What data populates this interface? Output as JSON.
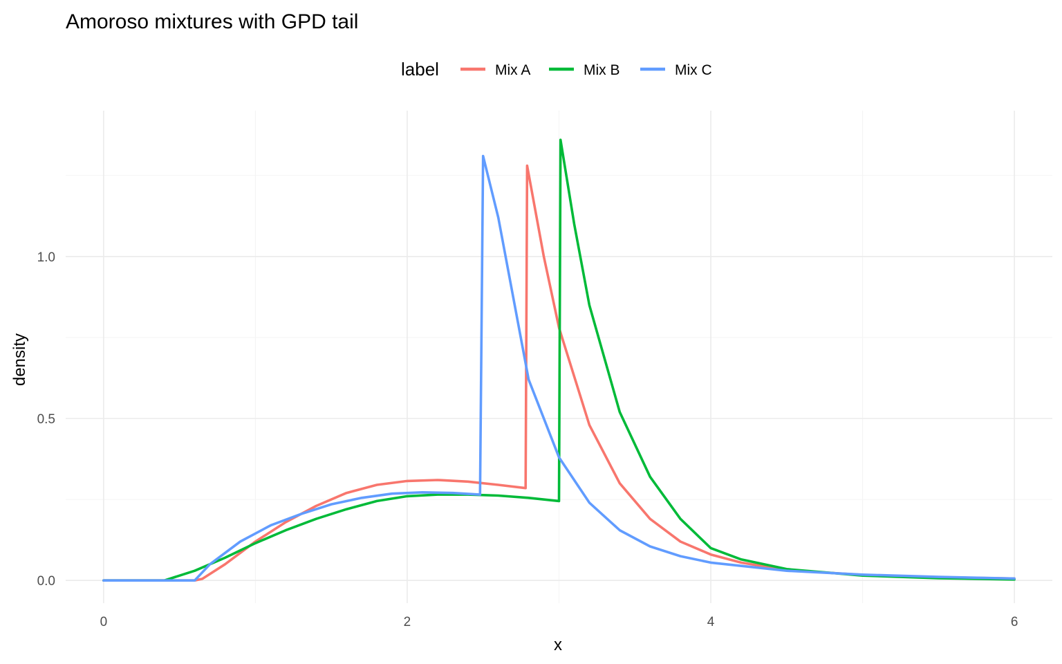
{
  "chart_data": {
    "type": "line",
    "title": "Amoroso mixtures with GPD tail",
    "xlabel": "x",
    "ylabel": "density",
    "xlim": [
      -0.25,
      6.25
    ],
    "ylim": [
      -0.07,
      1.45
    ],
    "x_ticks": [
      0,
      2,
      4,
      6
    ],
    "x_tick_labels": [
      "0",
      "2",
      "4",
      "6"
    ],
    "x_minor": [
      1,
      3,
      5
    ],
    "y_ticks": [
      0.0,
      0.5,
      1.0
    ],
    "y_tick_labels": [
      "0.0",
      "0.5",
      "1.0"
    ],
    "y_minor": [
      0.25,
      0.75,
      1.25
    ],
    "grid": true,
    "legend": {
      "title": "label",
      "position": "top"
    },
    "series": [
      {
        "name": "Mix A",
        "color": "#F8766D",
        "points": [
          [
            0,
            0
          ],
          [
            0.6,
            0
          ],
          [
            0.65,
            0.005
          ],
          [
            0.8,
            0.05
          ],
          [
            1.0,
            0.12
          ],
          [
            1.2,
            0.18
          ],
          [
            1.4,
            0.23
          ],
          [
            1.6,
            0.27
          ],
          [
            1.8,
            0.295
          ],
          [
            2.0,
            0.307
          ],
          [
            2.2,
            0.31
          ],
          [
            2.4,
            0.305
          ],
          [
            2.6,
            0.295
          ],
          [
            2.78,
            0.285
          ],
          [
            2.79,
            1.28
          ],
          [
            2.9,
            1.0
          ],
          [
            3.0,
            0.78
          ],
          [
            3.2,
            0.48
          ],
          [
            3.4,
            0.3
          ],
          [
            3.6,
            0.19
          ],
          [
            3.8,
            0.12
          ],
          [
            4.0,
            0.08
          ],
          [
            4.2,
            0.055
          ],
          [
            4.5,
            0.032
          ],
          [
            5.0,
            0.017
          ],
          [
            5.5,
            0.01
          ],
          [
            6.0,
            0.006
          ]
        ]
      },
      {
        "name": "Mix B",
        "color": "#00BA38",
        "points": [
          [
            0,
            0
          ],
          [
            0.4,
            0
          ],
          [
            0.6,
            0.03
          ],
          [
            0.8,
            0.07
          ],
          [
            1.0,
            0.115
          ],
          [
            1.2,
            0.155
          ],
          [
            1.4,
            0.19
          ],
          [
            1.6,
            0.22
          ],
          [
            1.8,
            0.245
          ],
          [
            2.0,
            0.26
          ],
          [
            2.2,
            0.265
          ],
          [
            2.4,
            0.265
          ],
          [
            2.6,
            0.262
          ],
          [
            2.8,
            0.255
          ],
          [
            3.0,
            0.245
          ],
          [
            3.01,
            1.36
          ],
          [
            3.1,
            1.1
          ],
          [
            3.2,
            0.85
          ],
          [
            3.4,
            0.52
          ],
          [
            3.6,
            0.32
          ],
          [
            3.8,
            0.19
          ],
          [
            4.0,
            0.1
          ],
          [
            4.2,
            0.065
          ],
          [
            4.5,
            0.035
          ],
          [
            5.0,
            0.015
          ],
          [
            5.5,
            0.007
          ],
          [
            6.0,
            0.003
          ]
        ]
      },
      {
        "name": "Mix C",
        "color": "#619CFF",
        "points": [
          [
            0,
            0
          ],
          [
            0.6,
            0
          ],
          [
            0.7,
            0.05
          ],
          [
            0.9,
            0.12
          ],
          [
            1.1,
            0.17
          ],
          [
            1.3,
            0.205
          ],
          [
            1.5,
            0.235
          ],
          [
            1.7,
            0.255
          ],
          [
            1.9,
            0.268
          ],
          [
            2.1,
            0.272
          ],
          [
            2.3,
            0.27
          ],
          [
            2.48,
            0.265
          ],
          [
            2.5,
            1.31
          ],
          [
            2.6,
            1.12
          ],
          [
            2.8,
            0.62
          ],
          [
            3.0,
            0.38
          ],
          [
            3.2,
            0.24
          ],
          [
            3.4,
            0.155
          ],
          [
            3.6,
            0.105
          ],
          [
            3.8,
            0.075
          ],
          [
            4.0,
            0.055
          ],
          [
            4.5,
            0.03
          ],
          [
            5.0,
            0.018
          ],
          [
            5.5,
            0.011
          ],
          [
            6.0,
            0.006
          ]
        ]
      }
    ]
  }
}
